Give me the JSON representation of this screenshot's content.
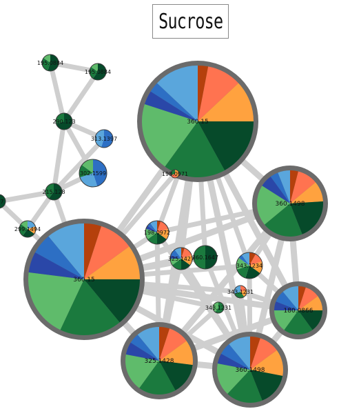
{
  "title": "Sucrose",
  "colors": {
    "edge": "#cfcfcf",
    "ring": "#6b6b6b",
    "palette": {
      "rust": "#b5400c",
      "coral": "#ff7350",
      "orange": "#ffa23f",
      "darkgreen": "#064a2a",
      "green": "#1b7a3e",
      "lightgreen": "#5fbb6b",
      "navy": "#2a47a8",
      "blue": "#2d6fc4",
      "skyblue": "#5aa6dc"
    }
  },
  "nodes": [
    {
      "id": "n195a",
      "label": "195.0884",
      "ring": false,
      "slices": [
        [
          "darkgreen",
          0.55
        ],
        [
          "green",
          0.3
        ],
        [
          "lightgreen",
          0.15
        ]
      ]
    },
    {
      "id": "n195b",
      "label": "195.0884",
      "ring": false,
      "slices": [
        [
          "darkgreen",
          0.6
        ],
        [
          "green",
          0.25
        ],
        [
          "lightgreen",
          0.15
        ]
      ]
    },
    {
      "id": "n290",
      "label": "290.123",
      "ring": false,
      "slices": [
        [
          "darkgreen",
          0.7
        ],
        [
          "green",
          0.3
        ]
      ]
    },
    {
      "id": "n313",
      "label": "313.1397",
      "ring": false,
      "slices": [
        [
          "blue",
          0.55
        ],
        [
          "skyblue",
          0.45
        ]
      ]
    },
    {
      "id": "n302",
      "label": "302.1599",
      "ring": false,
      "slices": [
        [
          "blue",
          0.45
        ],
        [
          "skyblue",
          0.25
        ],
        [
          "green",
          0.15
        ],
        [
          "lightgreen",
          0.15
        ]
      ]
    },
    {
      "id": "n215",
      "label": "215.128",
      "ring": false,
      "slices": [
        [
          "darkgreen",
          0.6
        ],
        [
          "green",
          0.4
        ]
      ]
    },
    {
      "id": "n297",
      "label": "297",
      "ring": false,
      "slices": [
        [
          "darkgreen",
          1
        ]
      ]
    },
    {
      "id": "n299",
      "label": "299.1494",
      "ring": false,
      "slices": [
        [
          "skyblue",
          0.2
        ],
        [
          "orange",
          0.15
        ],
        [
          "darkgreen",
          0.25
        ],
        [
          "green",
          0.25
        ],
        [
          "lightgreen",
          0.15
        ]
      ]
    },
    {
      "id": "n360a",
      "label": "360.15",
      "ring": true,
      "slices": [
        [
          "rust",
          0.03
        ],
        [
          "coral",
          0.1
        ],
        [
          "orange",
          0.12
        ],
        [
          "darkgreen",
          0.17
        ],
        [
          "green",
          0.18
        ],
        [
          "lightgreen",
          0.2
        ],
        [
          "navy",
          0.04
        ],
        [
          "blue",
          0.03
        ],
        [
          "skyblue",
          0.13
        ]
      ]
    },
    {
      "id": "n198a",
      "label": "198.0971",
      "ring": false,
      "slices": [
        [
          "orange",
          0.4
        ],
        [
          "coral",
          0.3
        ],
        [
          "green",
          0.3
        ]
      ]
    },
    {
      "id": "n360b",
      "label": "360.1498",
      "ring": true,
      "slices": [
        [
          "rust",
          0.04
        ],
        [
          "coral",
          0.1
        ],
        [
          "orange",
          0.1
        ],
        [
          "darkgreen",
          0.2
        ],
        [
          "green",
          0.2
        ],
        [
          "lightgreen",
          0.2
        ],
        [
          "navy",
          0.06
        ],
        [
          "blue",
          0.04
        ],
        [
          "skyblue",
          0.06
        ]
      ]
    },
    {
      "id": "n198b",
      "label": "198.0972",
      "ring": false,
      "slices": [
        [
          "rust",
          0.05
        ],
        [
          "coral",
          0.15
        ],
        [
          "orange",
          0.15
        ],
        [
          "darkgreen",
          0.15
        ],
        [
          "green",
          0.15
        ],
        [
          "lightgreen",
          0.15
        ],
        [
          "navy",
          0.05
        ],
        [
          "blue",
          0.05
        ],
        [
          "skyblue",
          0.1
        ]
      ]
    },
    {
      "id": "n360c",
      "label": "360.15",
      "ring": true,
      "slices": [
        [
          "rust",
          0.05
        ],
        [
          "coral",
          0.1
        ],
        [
          "orange",
          0.1
        ],
        [
          "darkgreen",
          0.14
        ],
        [
          "green",
          0.18
        ],
        [
          "lightgreen",
          0.2
        ],
        [
          "navy",
          0.06
        ],
        [
          "blue",
          0.06
        ],
        [
          "skyblue",
          0.11
        ]
      ]
    },
    {
      "id": "n325a",
      "label": "325.1427",
      "ring": false,
      "slices": [
        [
          "rust",
          0.05
        ],
        [
          "coral",
          0.15
        ],
        [
          "orange",
          0.15
        ],
        [
          "darkgreen",
          0.15
        ],
        [
          "green",
          0.15
        ],
        [
          "lightgreen",
          0.1
        ],
        [
          "navy",
          0.05
        ],
        [
          "blue",
          0.1
        ],
        [
          "skyblue",
          0.1
        ]
      ]
    },
    {
      "id": "n360d",
      "label": "360.1647",
      "ring": false,
      "slices": [
        [
          "darkgreen",
          0.5
        ],
        [
          "green",
          0.5
        ]
      ]
    },
    {
      "id": "n343a",
      "label": "343.1234",
      "ring": false,
      "slices": [
        [
          "rust",
          0.08
        ],
        [
          "coral",
          0.12
        ],
        [
          "orange",
          0.15
        ],
        [
          "darkgreen",
          0.2
        ],
        [
          "green",
          0.15
        ],
        [
          "lightgreen",
          0.15
        ],
        [
          "blue",
          0.05
        ],
        [
          "skyblue",
          0.1
        ]
      ]
    },
    {
      "id": "n343b",
      "label": "343.1231",
      "ring": false,
      "slices": [
        [
          "coral",
          0.2
        ],
        [
          "orange",
          0.2
        ],
        [
          "green",
          0.3
        ],
        [
          "skyblue",
          0.3
        ]
      ]
    },
    {
      "id": "n343c",
      "label": "343.1231",
      "ring": false,
      "slices": [
        [
          "green",
          0.6
        ],
        [
          "lightgreen",
          0.4
        ]
      ]
    },
    {
      "id": "n180",
      "label": "180.0866",
      "ring": true,
      "slices": [
        [
          "rust",
          0.05
        ],
        [
          "coral",
          0.1
        ],
        [
          "orange",
          0.1
        ],
        [
          "darkgreen",
          0.15
        ],
        [
          "green",
          0.2
        ],
        [
          "lightgreen",
          0.15
        ],
        [
          "navy",
          0.06
        ],
        [
          "blue",
          0.08
        ],
        [
          "skyblue",
          0.11
        ]
      ]
    },
    {
      "id": "n325b",
      "label": "325.1428",
      "ring": true,
      "slices": [
        [
          "rust",
          0.05
        ],
        [
          "coral",
          0.1
        ],
        [
          "orange",
          0.12
        ],
        [
          "darkgreen",
          0.15
        ],
        [
          "green",
          0.18
        ],
        [
          "lightgreen",
          0.18
        ],
        [
          "navy",
          0.06
        ],
        [
          "blue",
          0.05
        ],
        [
          "skyblue",
          0.11
        ]
      ]
    },
    {
      "id": "n360e",
      "label": "360.1498",
      "ring": true,
      "slices": [
        [
          "rust",
          0.05
        ],
        [
          "coral",
          0.1
        ],
        [
          "orange",
          0.13
        ],
        [
          "darkgreen",
          0.16
        ],
        [
          "green",
          0.18
        ],
        [
          "lightgreen",
          0.16
        ],
        [
          "navy",
          0.05
        ],
        [
          "blue",
          0.06
        ],
        [
          "skyblue",
          0.11
        ]
      ]
    }
  ],
  "edges": [
    [
      "n195a",
      "n195b"
    ],
    [
      "n195a",
      "n290"
    ],
    [
      "n195b",
      "n290"
    ],
    [
      "n290",
      "n313"
    ],
    [
      "n290",
      "n302"
    ],
    [
      "n290",
      "n215"
    ],
    [
      "n313",
      "n215"
    ],
    [
      "n302",
      "n215"
    ],
    [
      "n215",
      "n297"
    ],
    [
      "n215",
      "n299"
    ],
    [
      "n215",
      "n360c"
    ],
    [
      "n297",
      "n299"
    ],
    [
      "n299",
      "n360c"
    ],
    [
      "n360a",
      "n198a"
    ],
    [
      "n360a",
      "n360b"
    ],
    [
      "n360a",
      "n198b"
    ],
    [
      "n360a",
      "n325a"
    ],
    [
      "n360a",
      "n360d"
    ],
    [
      "n360a",
      "n343a"
    ],
    [
      "n360a",
      "n180"
    ],
    [
      "n360a",
      "n325b"
    ],
    [
      "n360a",
      "n360e"
    ],
    [
      "n360a",
      "n360c"
    ],
    [
      "n198a",
      "n360c"
    ],
    [
      "n360b",
      "n198b"
    ],
    [
      "n360b",
      "n360c"
    ],
    [
      "n360b",
      "n180"
    ],
    [
      "n360b",
      "n360e"
    ],
    [
      "n360b",
      "n343a"
    ],
    [
      "n360b",
      "n325b"
    ],
    [
      "n360c",
      "n198b"
    ],
    [
      "n360c",
      "n325a"
    ],
    [
      "n360c",
      "n360d"
    ],
    [
      "n360c",
      "n343a"
    ],
    [
      "n360c",
      "n343b"
    ],
    [
      "n360c",
      "n180"
    ],
    [
      "n360c",
      "n325b"
    ],
    [
      "n360c",
      "n360e"
    ],
    [
      "n360c",
      "n343c"
    ],
    [
      "n198b",
      "n325b"
    ],
    [
      "n198b",
      "n360e"
    ],
    [
      "n325a",
      "n360e"
    ],
    [
      "n325a",
      "n325b"
    ],
    [
      "n360d",
      "n360e"
    ],
    [
      "n343a",
      "n360e"
    ],
    [
      "n343b",
      "n360e"
    ],
    [
      "n343c",
      "n325b"
    ],
    [
      "n180",
      "n360e"
    ],
    [
      "n180",
      "n325b"
    ],
    [
      "n343a",
      "n180"
    ],
    [
      "n343b",
      "n180"
    ],
    [
      "n325b",
      "n360e"
    ]
  ]
}
